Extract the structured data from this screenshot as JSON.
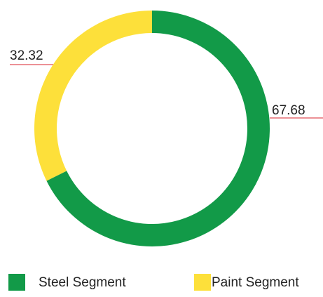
{
  "chart_data": {
    "type": "pie",
    "donut": true,
    "categories": [
      "Steel Segment",
      "Paint Segment"
    ],
    "values": [
      67.68,
      32.32
    ],
    "colors": [
      "#129a48",
      "#fde03a"
    ],
    "legend": "bottom"
  }
}
